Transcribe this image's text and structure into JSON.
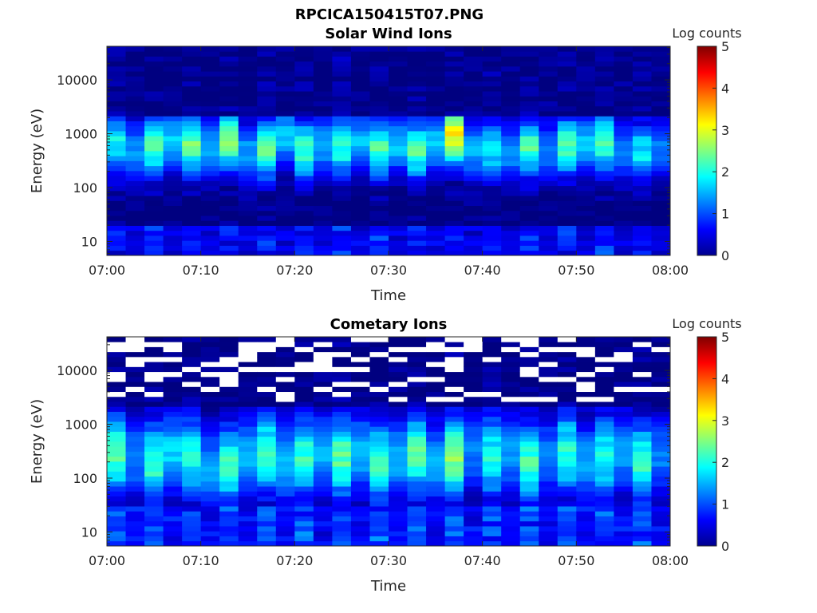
{
  "figure": {
    "title": "RPCICA150415T07.PNG"
  },
  "chart_data": [
    {
      "type": "heatmap",
      "title": "Solar Wind Ions",
      "xlabel": "Time",
      "ylabel": "Energy (eV)",
      "x_ticks": [
        "07:00",
        "07:10",
        "07:20",
        "07:30",
        "07:40",
        "07:50",
        "08:00"
      ],
      "x_range": [
        "07:00",
        "08:00"
      ],
      "y_scale": "log",
      "y_ticks": [
        "10",
        "100",
        "1000",
        "10000"
      ],
      "y_range": [
        5.5,
        42000
      ],
      "colorbar": {
        "label": "Log counts",
        "ticks": [
          "0",
          "1",
          "2",
          "3",
          "4",
          "5"
        ],
        "range": [
          0,
          5
        ],
        "colormap": "jet"
      },
      "time_columns_minutes": [
        0,
        2,
        4,
        6,
        8,
        10,
        12,
        14,
        16,
        18,
        20,
        22,
        24,
        26,
        28,
        30,
        32,
        34,
        36,
        38,
        40,
        42,
        44,
        46,
        48,
        50,
        52,
        54,
        56,
        58
      ],
      "peak_log_counts": [
        1.9,
        2.1,
        2.3,
        2.5,
        2.4,
        2.2,
        2.6,
        2.2,
        2.3,
        2.5,
        2.2,
        2.3,
        2.1,
        2.4,
        2.2,
        2.5,
        2.3,
        2.6,
        3.1,
        2.3,
        1.8,
        2.1,
        2.2,
        1.9,
        2.2,
        2.5,
        2.2,
        2.0,
        1.8,
        1.9
      ],
      "peak_energy_eV": [
        700,
        500,
        600,
        750,
        650,
        550,
        800,
        450,
        500,
        900,
        500,
        650,
        600,
        700,
        550,
        650,
        500,
        700,
        900,
        500,
        500,
        450,
        550,
        500,
        600,
        650,
        700,
        500,
        450,
        550
      ]
    },
    {
      "type": "heatmap",
      "title": "Cometary Ions",
      "xlabel": "Time",
      "ylabel": "Energy (eV)",
      "x_ticks": [
        "07:00",
        "07:10",
        "07:20",
        "07:30",
        "07:40",
        "07:50",
        "08:00"
      ],
      "x_range": [
        "07:00",
        "08:00"
      ],
      "y_scale": "log",
      "y_ticks": [
        "10",
        "100",
        "1000",
        "10000"
      ],
      "y_range": [
        5.5,
        42000
      ],
      "colorbar": {
        "label": "Log counts",
        "ticks": [
          "0",
          "1",
          "2",
          "3",
          "4",
          "5"
        ],
        "range": [
          0,
          5
        ],
        "colormap": "jet"
      },
      "time_columns_minutes": [
        0,
        2,
        4,
        6,
        8,
        10,
        12,
        14,
        16,
        18,
        20,
        22,
        24,
        26,
        28,
        30,
        32,
        34,
        36,
        38,
        40,
        42,
        44,
        46,
        48,
        50,
        52,
        54,
        56,
        58
      ],
      "peak_log_counts": [
        2.3,
        2.0,
        2.2,
        2.6,
        2.0,
        2.2,
        2.1,
        2.3,
        2.2,
        2.4,
        2.1,
        2.3,
        2.3,
        2.4,
        2.2,
        2.4,
        2.3,
        2.3,
        2.6,
        1.9,
        2.0,
        2.1,
        2.2,
        2.0,
        2.1,
        2.2,
        2.0,
        2.1,
        2.1,
        1.9
      ],
      "peak_energy_eV": [
        300,
        250,
        200,
        300,
        250,
        150,
        180,
        250,
        300,
        200,
        250,
        300,
        250,
        300,
        200,
        250,
        300,
        200,
        250,
        300,
        250,
        300,
        200,
        250,
        300,
        200,
        250,
        300,
        200,
        250
      ]
    }
  ]
}
